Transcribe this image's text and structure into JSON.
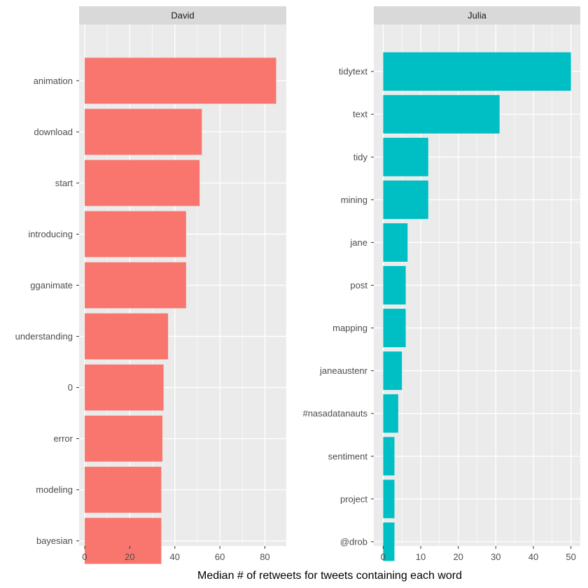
{
  "chart_data": {
    "type": "bar",
    "orientation": "horizontal",
    "facet": "wrap",
    "xlabel": "Median # of retweets for tweets containing each word",
    "ylabel": "",
    "grid": true,
    "legend": "none",
    "panels": [
      {
        "strip": "David",
        "color": "#F8766D",
        "xlim": [
          -2.5,
          89.5
        ],
        "xticks": [
          0,
          20,
          40,
          60,
          80
        ],
        "categories": [
          "animation",
          "download",
          "start",
          "introducing",
          "gganimate",
          "understanding",
          "0",
          "error",
          "modeling",
          "bayesian"
        ],
        "values": [
          85,
          52,
          51,
          45,
          45,
          37,
          35,
          34.5,
          34,
          34
        ]
      },
      {
        "strip": "Julia",
        "color": "#00BFC4",
        "xlim": [
          -2.5,
          52.5
        ],
        "xticks": [
          0,
          10,
          20,
          30,
          40,
          50
        ],
        "categories": [
          "tidytext",
          "text",
          "tidy",
          "mining",
          "jane",
          "post",
          "mapping",
          "janeaustenr",
          "#nasadatanauts",
          "sentiment",
          "project",
          "@drob"
        ],
        "values": [
          50,
          31,
          12,
          12,
          6.5,
          6,
          6,
          5,
          4,
          3,
          3,
          3
        ]
      }
    ]
  }
}
